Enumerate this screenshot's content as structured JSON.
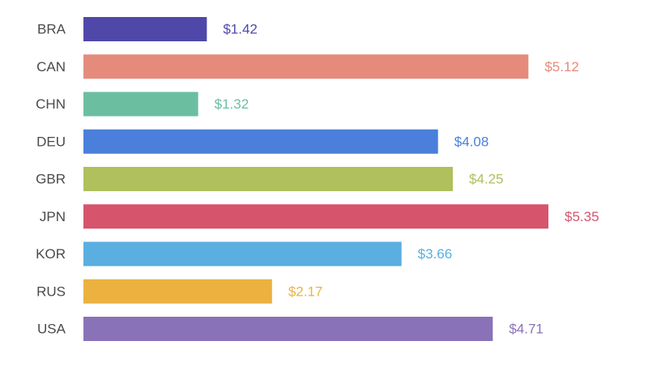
{
  "chart_data": {
    "type": "bar",
    "orientation": "horizontal",
    "title": "",
    "xlabel": "",
    "ylabel": "",
    "xlim": [
      0,
      5.35
    ],
    "grid": false,
    "legend": "none",
    "value_prefix": "$",
    "categories": [
      "BRA",
      "CAN",
      "CHN",
      "DEU",
      "GBR",
      "JPN",
      "KOR",
      "RUS",
      "USA"
    ],
    "values": [
      1.42,
      5.12,
      1.32,
      4.08,
      4.25,
      5.35,
      3.66,
      2.17,
      4.71
    ],
    "value_labels": [
      "$1.42",
      "$5.12",
      "$1.32",
      "$4.08",
      "$4.25",
      "$5.35",
      "$3.66",
      "$2.17",
      "$4.71"
    ],
    "colors": [
      "#5048a8",
      "#e58b7c",
      "#6bbfa0",
      "#4a7fdb",
      "#afc05c",
      "#d6546c",
      "#5aaee0",
      "#ebb240",
      "#8a72b8"
    ],
    "label_colors": [
      "#5048a8",
      "#e58b7c",
      "#6bbfa0",
      "#4a7fdb",
      "#afc05c",
      "#d6546c",
      "#5aaee0",
      "#ebb240",
      "#8a72b8"
    ]
  }
}
